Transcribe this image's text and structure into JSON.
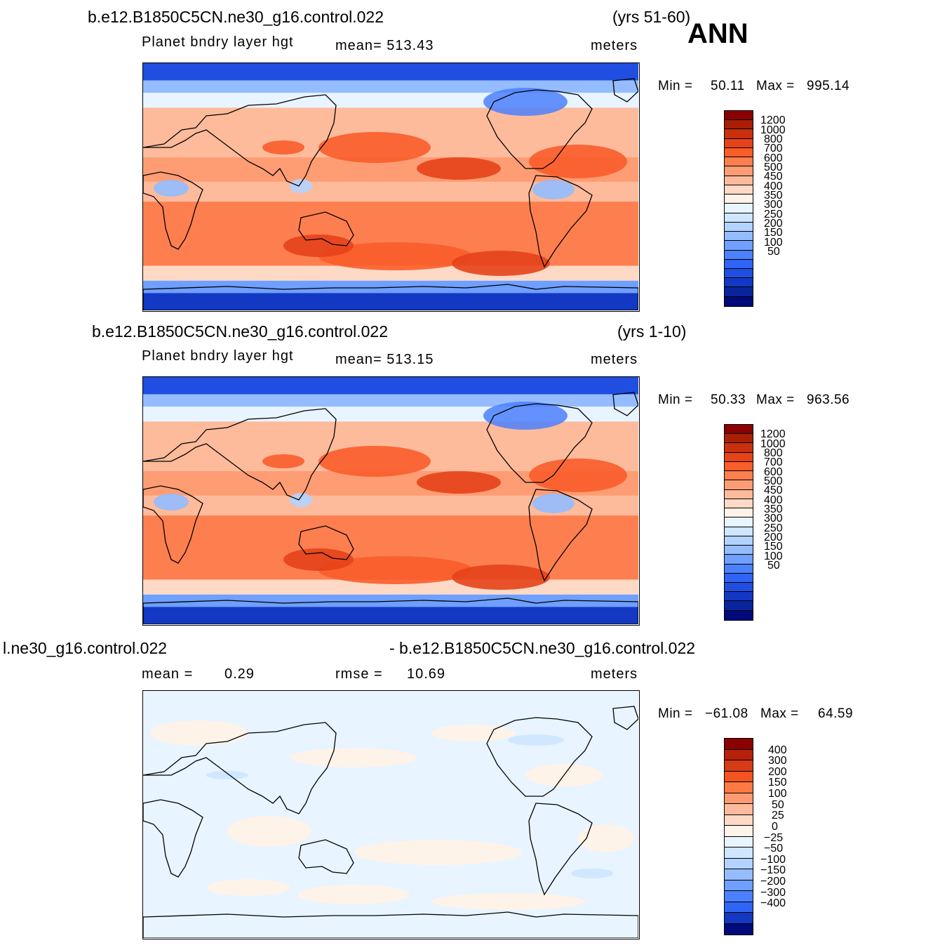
{
  "figure": {
    "season": "ANN"
  },
  "scales": {
    "abs": {
      "colors": [
        "#8b0000",
        "#a81f06",
        "#c9300e",
        "#e5431a",
        "#f95d2a",
        "#fd7f4f",
        "#fe9d74",
        "#fdbb9c",
        "#fedac6",
        "#fff2e8",
        "#e8f4ff",
        "#cfe6ff",
        "#b3d3ff",
        "#94bcff",
        "#6f9fff",
        "#4b80ff",
        "#2f64f5",
        "#1f4ee0",
        "#1338c4",
        "#0a249e",
        "#000a7a"
      ],
      "labels": [
        "1200",
        "1000",
        "800",
        "700",
        "600",
        "500",
        "450",
        "400",
        "350",
        "300",
        "250",
        "200",
        "150",
        "100",
        "50"
      ]
    },
    "diff": {
      "colors": [
        "#8b0000",
        "#b5210a",
        "#d63b15",
        "#f2531f",
        "#fd7a45",
        "#fe9b72",
        "#fdbb9c",
        "#fedac6",
        "#fff2e8",
        "#e8f4ff",
        "#cfe6ff",
        "#b3d3ff",
        "#94bcff",
        "#6f9fff",
        "#4b80ff",
        "#2f64f5",
        "#1338c4",
        "#000a7a"
      ],
      "labels": [
        "400",
        "300",
        "200",
        "150",
        "100",
        "50",
        "25",
        "0",
        "−25",
        "−50",
        "−100",
        "−150",
        "−200",
        "−300",
        "−400"
      ]
    }
  },
  "panels": [
    {
      "case_left": "b.e12.B1850C5CN.ne30_g16.control.022",
      "case_right": "(yrs 51-60)",
      "variable": "Planet  bndry  layer  hgt",
      "stat1": "mean=  513.43",
      "units": "meters",
      "min_label": "Min  =",
      "min_value": "50.11",
      "max_label": "Max  =",
      "max_value": "995.14"
    },
    {
      "case_left": "b.e12.B1850C5CN.ne30_g16.control.022",
      "case_right": "(yrs 1-10)",
      "variable": "Planet  bndry  layer  hgt",
      "stat1": "mean=  513.15",
      "units": "meters",
      "min_label": "Min  =",
      "min_value": "50.33",
      "max_label": "Max  =",
      "max_value": "963.56"
    },
    {
      "case_left": "l.ne30_g16.control.022",
      "case_right": "- b.e12.B1850C5CN.ne30_g16.control.022",
      "stat_mean_label": "mean  =",
      "stat_mean_value": "0.29",
      "stat_rmse_label": "rmse  =",
      "stat_rmse_value": "10.69",
      "units": "meters",
      "min_label": "Min  =",
      "min_value": "−61.08",
      "max_label": "Max  =",
      "max_value": "64.59"
    }
  ]
}
